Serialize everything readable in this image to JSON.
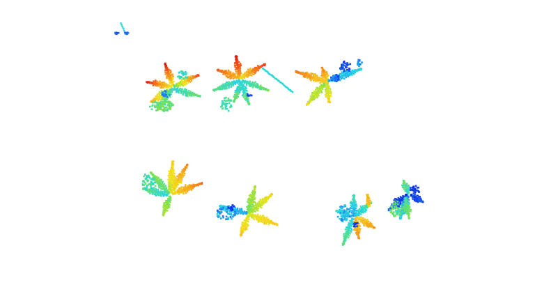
{
  "scene": {
    "background": "#ffffff",
    "colormap": [
      "#0a1ee6",
      "#1f7cf0",
      "#22d6e8",
      "#7be24a",
      "#f2e21c",
      "#f7a21b",
      "#f0521a",
      "#d8140f"
    ],
    "plants": [
      {
        "id": "plant-1",
        "row": "top",
        "low_color": "#22d6e8",
        "high_color": "#d8140f"
      },
      {
        "id": "plant-2",
        "row": "top",
        "low_color": "#22d6e8",
        "high_color": "#f0521a"
      },
      {
        "id": "plant-3",
        "row": "top",
        "low_color": "#0a1ee6",
        "high_color": "#f7a21b"
      },
      {
        "id": "plant-4",
        "row": "bottom",
        "low_color": "#22d6e8",
        "high_color": "#f7a21b"
      },
      {
        "id": "plant-5",
        "row": "bottom",
        "low_color": "#1f7cf0",
        "high_color": "#f2e21c"
      },
      {
        "id": "plant-6",
        "row": "bottom",
        "low_color": "#0a1ee6",
        "high_color": "#f7a21b"
      },
      {
        "id": "plant-7",
        "row": "bottom",
        "low_color": "#0a1ee6",
        "high_color": "#7be24a"
      }
    ]
  }
}
